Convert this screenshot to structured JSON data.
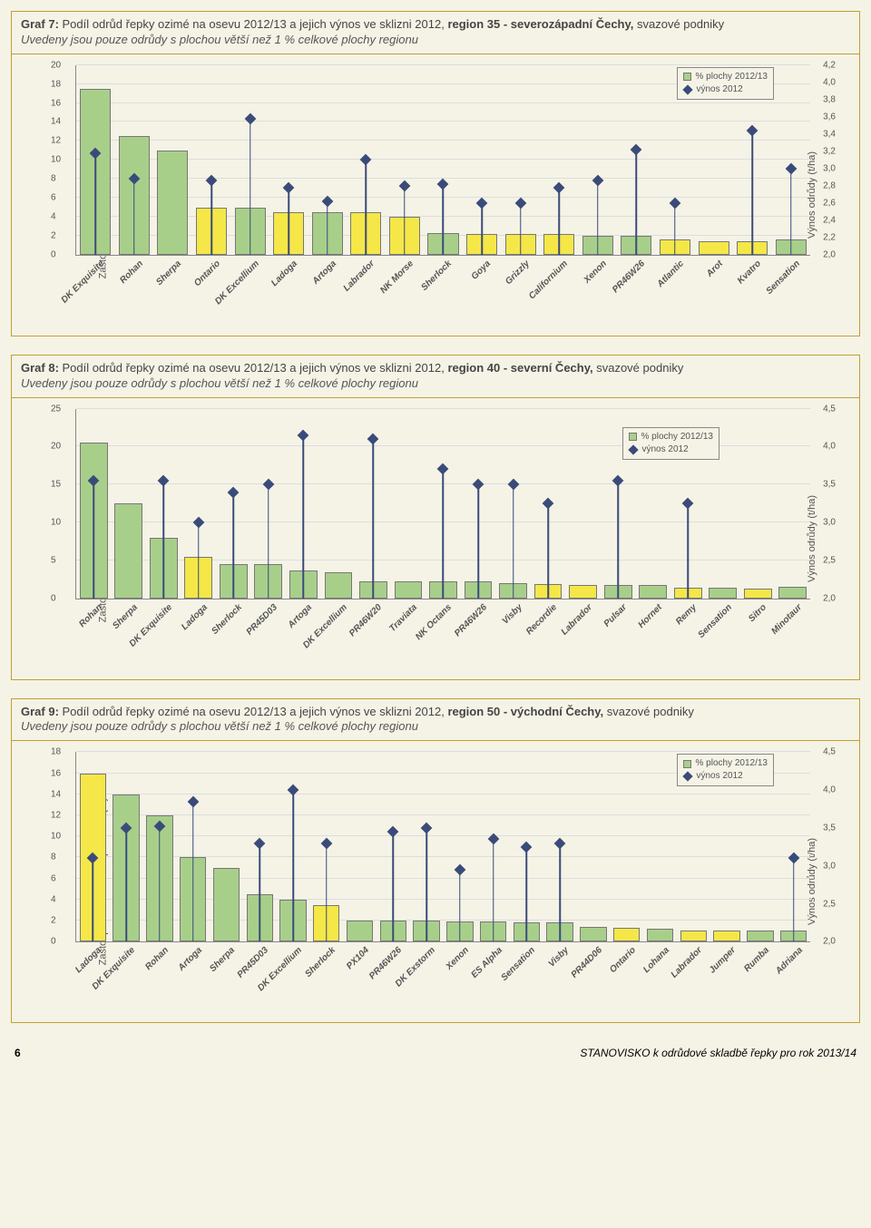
{
  "colors": {
    "background": "#f5f3e6",
    "border": "#c0a030",
    "bar_green": "#a8cf8a",
    "bar_yellow": "#f5e748",
    "bar_border": "#777777",
    "marker": "#3a4b7a",
    "grid": "#dddddd",
    "axis": "#888888",
    "text": "#555555"
  },
  "charts": [
    {
      "id": "g7",
      "title_prefix": "Graf 7: ",
      "title_main": "Podíl odrůd řepky ozimé na osevu 2012/13 a jejich výnos ve sklizni 2012, ",
      "title_region": "region 35 - severozápadní Čechy, ",
      "title_suffix": "svazové podniky",
      "subtitle": "Uvedeny jsou pouze odrůdy s plochou větší než 1 % celkové plochy regionu",
      "y_left": {
        "label": "Zastoupení na osevních plochách (%)",
        "min": 0,
        "max": 20,
        "step": 2
      },
      "y_right": {
        "label": "Výnos odrůdy (t/ha)",
        "min": 2.0,
        "max": 4.2,
        "step": 0.2
      },
      "legend": {
        "bar": "% plochy 2012/13",
        "marker": "výnos 2012",
        "pos": "top-right"
      },
      "data": [
        {
          "name": "DK Exquisite",
          "value": 17.5,
          "yield": 3.18,
          "color": "green"
        },
        {
          "name": "Rohan",
          "value": 12.5,
          "yield": 2.88,
          "color": "green"
        },
        {
          "name": "Sherpa",
          "value": 11.0,
          "yield": null,
          "color": "green"
        },
        {
          "name": "Ontario",
          "value": 5.0,
          "yield": 2.86,
          "color": "yellow"
        },
        {
          "name": "DK Excellium",
          "value": 5.0,
          "yield": 3.58,
          "color": "green"
        },
        {
          "name": "Ladoga",
          "value": 4.5,
          "yield": 2.78,
          "color": "yellow"
        },
        {
          "name": "Artoga",
          "value": 4.5,
          "yield": 2.62,
          "color": "green"
        },
        {
          "name": "Labrador",
          "value": 4.5,
          "yield": 3.1,
          "color": "yellow"
        },
        {
          "name": "NK Morse",
          "value": 4.0,
          "yield": 2.8,
          "color": "yellow"
        },
        {
          "name": "Sherlock",
          "value": 2.3,
          "yield": 2.82,
          "color": "green"
        },
        {
          "name": "Goya",
          "value": 2.2,
          "yield": 2.6,
          "color": "yellow"
        },
        {
          "name": "Grizzly",
          "value": 2.2,
          "yield": 2.6,
          "color": "yellow"
        },
        {
          "name": "Californium",
          "value": 2.2,
          "yield": 2.78,
          "color": "yellow"
        },
        {
          "name": "Xenon",
          "value": 2.0,
          "yield": 2.86,
          "color": "green"
        },
        {
          "name": "PR46W26",
          "value": 2.0,
          "yield": 3.22,
          "color": "green"
        },
        {
          "name": "Atlantic",
          "value": 1.6,
          "yield": 2.6,
          "color": "yellow"
        },
        {
          "name": "Arot",
          "value": 1.4,
          "yield": null,
          "color": "yellow"
        },
        {
          "name": "Kvatro",
          "value": 1.4,
          "yield": 3.44,
          "color": "yellow"
        },
        {
          "name": "Sensation",
          "value": 1.6,
          "yield": 3.0,
          "color": "green"
        }
      ]
    },
    {
      "id": "g8",
      "title_prefix": "Graf 8: ",
      "title_main": "Podíl odrůd řepky ozimé na osevu 2012/13 a jejich výnos ve sklizni 2012, ",
      "title_region": "region 40 - severní Čechy, ",
      "title_suffix": "svazové podniky",
      "subtitle": "Uvedeny jsou pouze odrůdy s plochou větší než 1 % celkové plochy regionu",
      "y_left": {
        "label": "Zastoupení na osevních plochách (%)",
        "min": 0,
        "max": 25,
        "step": 5
      },
      "y_right": {
        "label": "Výnos odrůdy (t/ha)",
        "min": 2.0,
        "max": 4.5,
        "step": 0.5
      },
      "legend": {
        "bar": "% plochy 2012/13",
        "marker": "výnos 2012",
        "pos": "mid-right"
      },
      "data": [
        {
          "name": "Rohan",
          "value": 20.5,
          "yield": 3.55,
          "color": "green"
        },
        {
          "name": "Sherpa",
          "value": 12.5,
          "yield": null,
          "color": "green"
        },
        {
          "name": "DK Exquisite",
          "value": 8.0,
          "yield": 3.55,
          "color": "green"
        },
        {
          "name": "Ladoga",
          "value": 5.5,
          "yield": 3.0,
          "color": "yellow"
        },
        {
          "name": "Sherlock",
          "value": 4.5,
          "yield": 3.4,
          "color": "green"
        },
        {
          "name": "PR45D03",
          "value": 4.5,
          "yield": 3.5,
          "color": "green"
        },
        {
          "name": "Artoga",
          "value": 3.7,
          "yield": 4.15,
          "color": "green"
        },
        {
          "name": "DK Excellium",
          "value": 3.4,
          "yield": null,
          "color": "green"
        },
        {
          "name": "PR46W20",
          "value": 2.2,
          "yield": 4.1,
          "color": "green"
        },
        {
          "name": "Traviata",
          "value": 2.2,
          "yield": null,
          "color": "green"
        },
        {
          "name": "NK Octans",
          "value": 2.2,
          "yield": 3.7,
          "color": "green"
        },
        {
          "name": "PR46W26",
          "value": 2.2,
          "yield": 3.5,
          "color": "green"
        },
        {
          "name": "Visby",
          "value": 2.0,
          "yield": 3.5,
          "color": "green"
        },
        {
          "name": "Recordie",
          "value": 1.9,
          "yield": 3.25,
          "color": "yellow"
        },
        {
          "name": "Labrador",
          "value": 1.8,
          "yield": null,
          "color": "yellow"
        },
        {
          "name": "Pulsar",
          "value": 1.8,
          "yield": 3.55,
          "color": "green"
        },
        {
          "name": "Hornet",
          "value": 1.7,
          "yield": null,
          "color": "green"
        },
        {
          "name": "Remy",
          "value": 1.4,
          "yield": 3.25,
          "color": "yellow"
        },
        {
          "name": "Sensation",
          "value": 1.4,
          "yield": null,
          "color": "green"
        },
        {
          "name": "Sitro",
          "value": 1.3,
          "yield": null,
          "color": "yellow"
        },
        {
          "name": "Minotaur",
          "value": 1.5,
          "yield": null,
          "color": "green"
        }
      ]
    },
    {
      "id": "g9",
      "title_prefix": "Graf 9: ",
      "title_main": "Podíl odrůd řepky ozimé na osevu 2012/13 a jejich výnos ve sklizni 2012, ",
      "title_region": "region 50 - východní Čechy, ",
      "title_suffix": "svazové podniky",
      "subtitle": "Uvedeny jsou pouze odrůdy s plochou větší než 1 % celkové plochy regionu",
      "y_left": {
        "label": "Zastoupení na osevních plochách (%)",
        "min": 0,
        "max": 18,
        "step": 2
      },
      "y_right": {
        "label": "Výnos odrůdy (t/ha)",
        "min": 2.0,
        "max": 4.5,
        "step": 0.5
      },
      "legend": {
        "bar": "% plochy 2012/13",
        "marker": "výnos 2012",
        "pos": "top-right"
      },
      "data": [
        {
          "name": "Ladoga",
          "value": 16.0,
          "yield": 3.1,
          "color": "yellow"
        },
        {
          "name": "DK Exquisite",
          "value": 14.0,
          "yield": 3.5,
          "color": "green"
        },
        {
          "name": "Rohan",
          "value": 12.0,
          "yield": 3.52,
          "color": "green"
        },
        {
          "name": "Artoga",
          "value": 8.0,
          "yield": 3.85,
          "color": "green"
        },
        {
          "name": "Sherpa",
          "value": 7.0,
          "yield": null,
          "color": "green"
        },
        {
          "name": "PR45D03",
          "value": 4.5,
          "yield": 3.3,
          "color": "green"
        },
        {
          "name": "DK Excellium",
          "value": 4.0,
          "yield": 4.0,
          "color": "green"
        },
        {
          "name": "Sherlock",
          "value": 3.5,
          "yield": 3.3,
          "color": "yellow"
        },
        {
          "name": "PX104",
          "value": 2.0,
          "yield": null,
          "color": "green"
        },
        {
          "name": "PR46W26",
          "value": 2.0,
          "yield": 3.45,
          "color": "green"
        },
        {
          "name": "DK Exstorm",
          "value": 2.0,
          "yield": 3.5,
          "color": "green"
        },
        {
          "name": "Xenon",
          "value": 1.9,
          "yield": 2.95,
          "color": "green"
        },
        {
          "name": "ES Alpha",
          "value": 1.9,
          "yield": 3.35,
          "color": "green"
        },
        {
          "name": "Sensation",
          "value": 1.8,
          "yield": 3.25,
          "color": "green"
        },
        {
          "name": "Visby",
          "value": 1.8,
          "yield": 3.3,
          "color": "green"
        },
        {
          "name": "PR44D06",
          "value": 1.4,
          "yield": null,
          "color": "green"
        },
        {
          "name": "Ontario",
          "value": 1.3,
          "yield": null,
          "color": "yellow"
        },
        {
          "name": "Lohana",
          "value": 1.2,
          "yield": null,
          "color": "green"
        },
        {
          "name": "Labrador",
          "value": 1.1,
          "yield": null,
          "color": "yellow"
        },
        {
          "name": "Jumper",
          "value": 1.1,
          "yield": null,
          "color": "yellow"
        },
        {
          "name": "Rumba",
          "value": 1.1,
          "yield": null,
          "color": "green"
        },
        {
          "name": "Adriana",
          "value": 1.1,
          "yield": 3.1,
          "color": "green"
        }
      ]
    }
  ],
  "footer": {
    "page_number": "6",
    "text": "STANOVISKO k odrůdové skladbě řepky pro rok 2013/14"
  }
}
